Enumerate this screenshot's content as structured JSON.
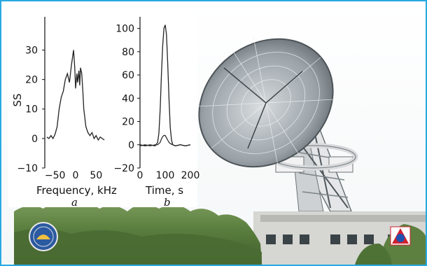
{
  "chart_data": [
    {
      "panel_label": "a",
      "type": "line",
      "xlabel": "Frequency, kHz",
      "ylabel": "SS",
      "xlim": [
        -75,
        75
      ],
      "ylim": [
        -10,
        37
      ],
      "xticks": [
        -50,
        0,
        50
      ],
      "yticks": [
        -10,
        0,
        10,
        20,
        30
      ],
      "series": [
        {
          "x": [
            -70,
            -65,
            -60,
            -55,
            -50,
            -45,
            -40,
            -35,
            -30,
            -25,
            -20,
            -15,
            -10,
            -5,
            -2,
            0,
            3,
            5,
            8,
            10,
            12,
            15,
            18,
            20,
            25,
            30,
            35,
            40,
            45,
            50,
            55,
            60,
            65,
            70
          ],
          "y": [
            0.5,
            0,
            1,
            0,
            1.5,
            4,
            10,
            14,
            16,
            20,
            22,
            19,
            25,
            30,
            24,
            17,
            22,
            19,
            23,
            18,
            24,
            22,
            15,
            10,
            4,
            2,
            1,
            2,
            0,
            1,
            -0.5,
            0.5,
            0,
            -0.5
          ]
        }
      ]
    },
    {
      "panel_label": "b",
      "type": "line",
      "xlabel": "Time, s",
      "ylim": [
        -20,
        110
      ],
      "xlim": [
        0,
        200
      ],
      "xticks": [
        0,
        100,
        200
      ],
      "yticks": [
        -20,
        0,
        20,
        40,
        60,
        80,
        100
      ],
      "series": [
        {
          "x": [
            0,
            20,
            40,
            60,
            70,
            75,
            80,
            85,
            90,
            95,
            100,
            105,
            110,
            115,
            120,
            125,
            130,
            140,
            160,
            180,
            200
          ],
          "y": [
            0,
            -1,
            0,
            -1,
            2,
            10,
            30,
            60,
            85,
            100,
            103,
            95,
            70,
            40,
            15,
            4,
            0,
            -1,
            0,
            -1,
            0
          ]
        },
        {
          "x": [
            0,
            20,
            40,
            60,
            70,
            80,
            85,
            90,
            95,
            100,
            105,
            110,
            115,
            120,
            130,
            140,
            160,
            180,
            200
          ],
          "y": [
            -1,
            0,
            -1,
            0,
            0,
            2,
            5,
            7,
            8,
            8,
            6,
            4,
            2,
            1,
            0,
            -1,
            0,
            -1,
            0
          ]
        }
      ]
    }
  ],
  "logos": [
    {
      "name": "observatory-emblem",
      "color": "#2c5aa0"
    },
    {
      "name": "institute-logo",
      "colors": [
        "#d02030",
        "#2050b0",
        "#ffffff"
      ]
    }
  ]
}
